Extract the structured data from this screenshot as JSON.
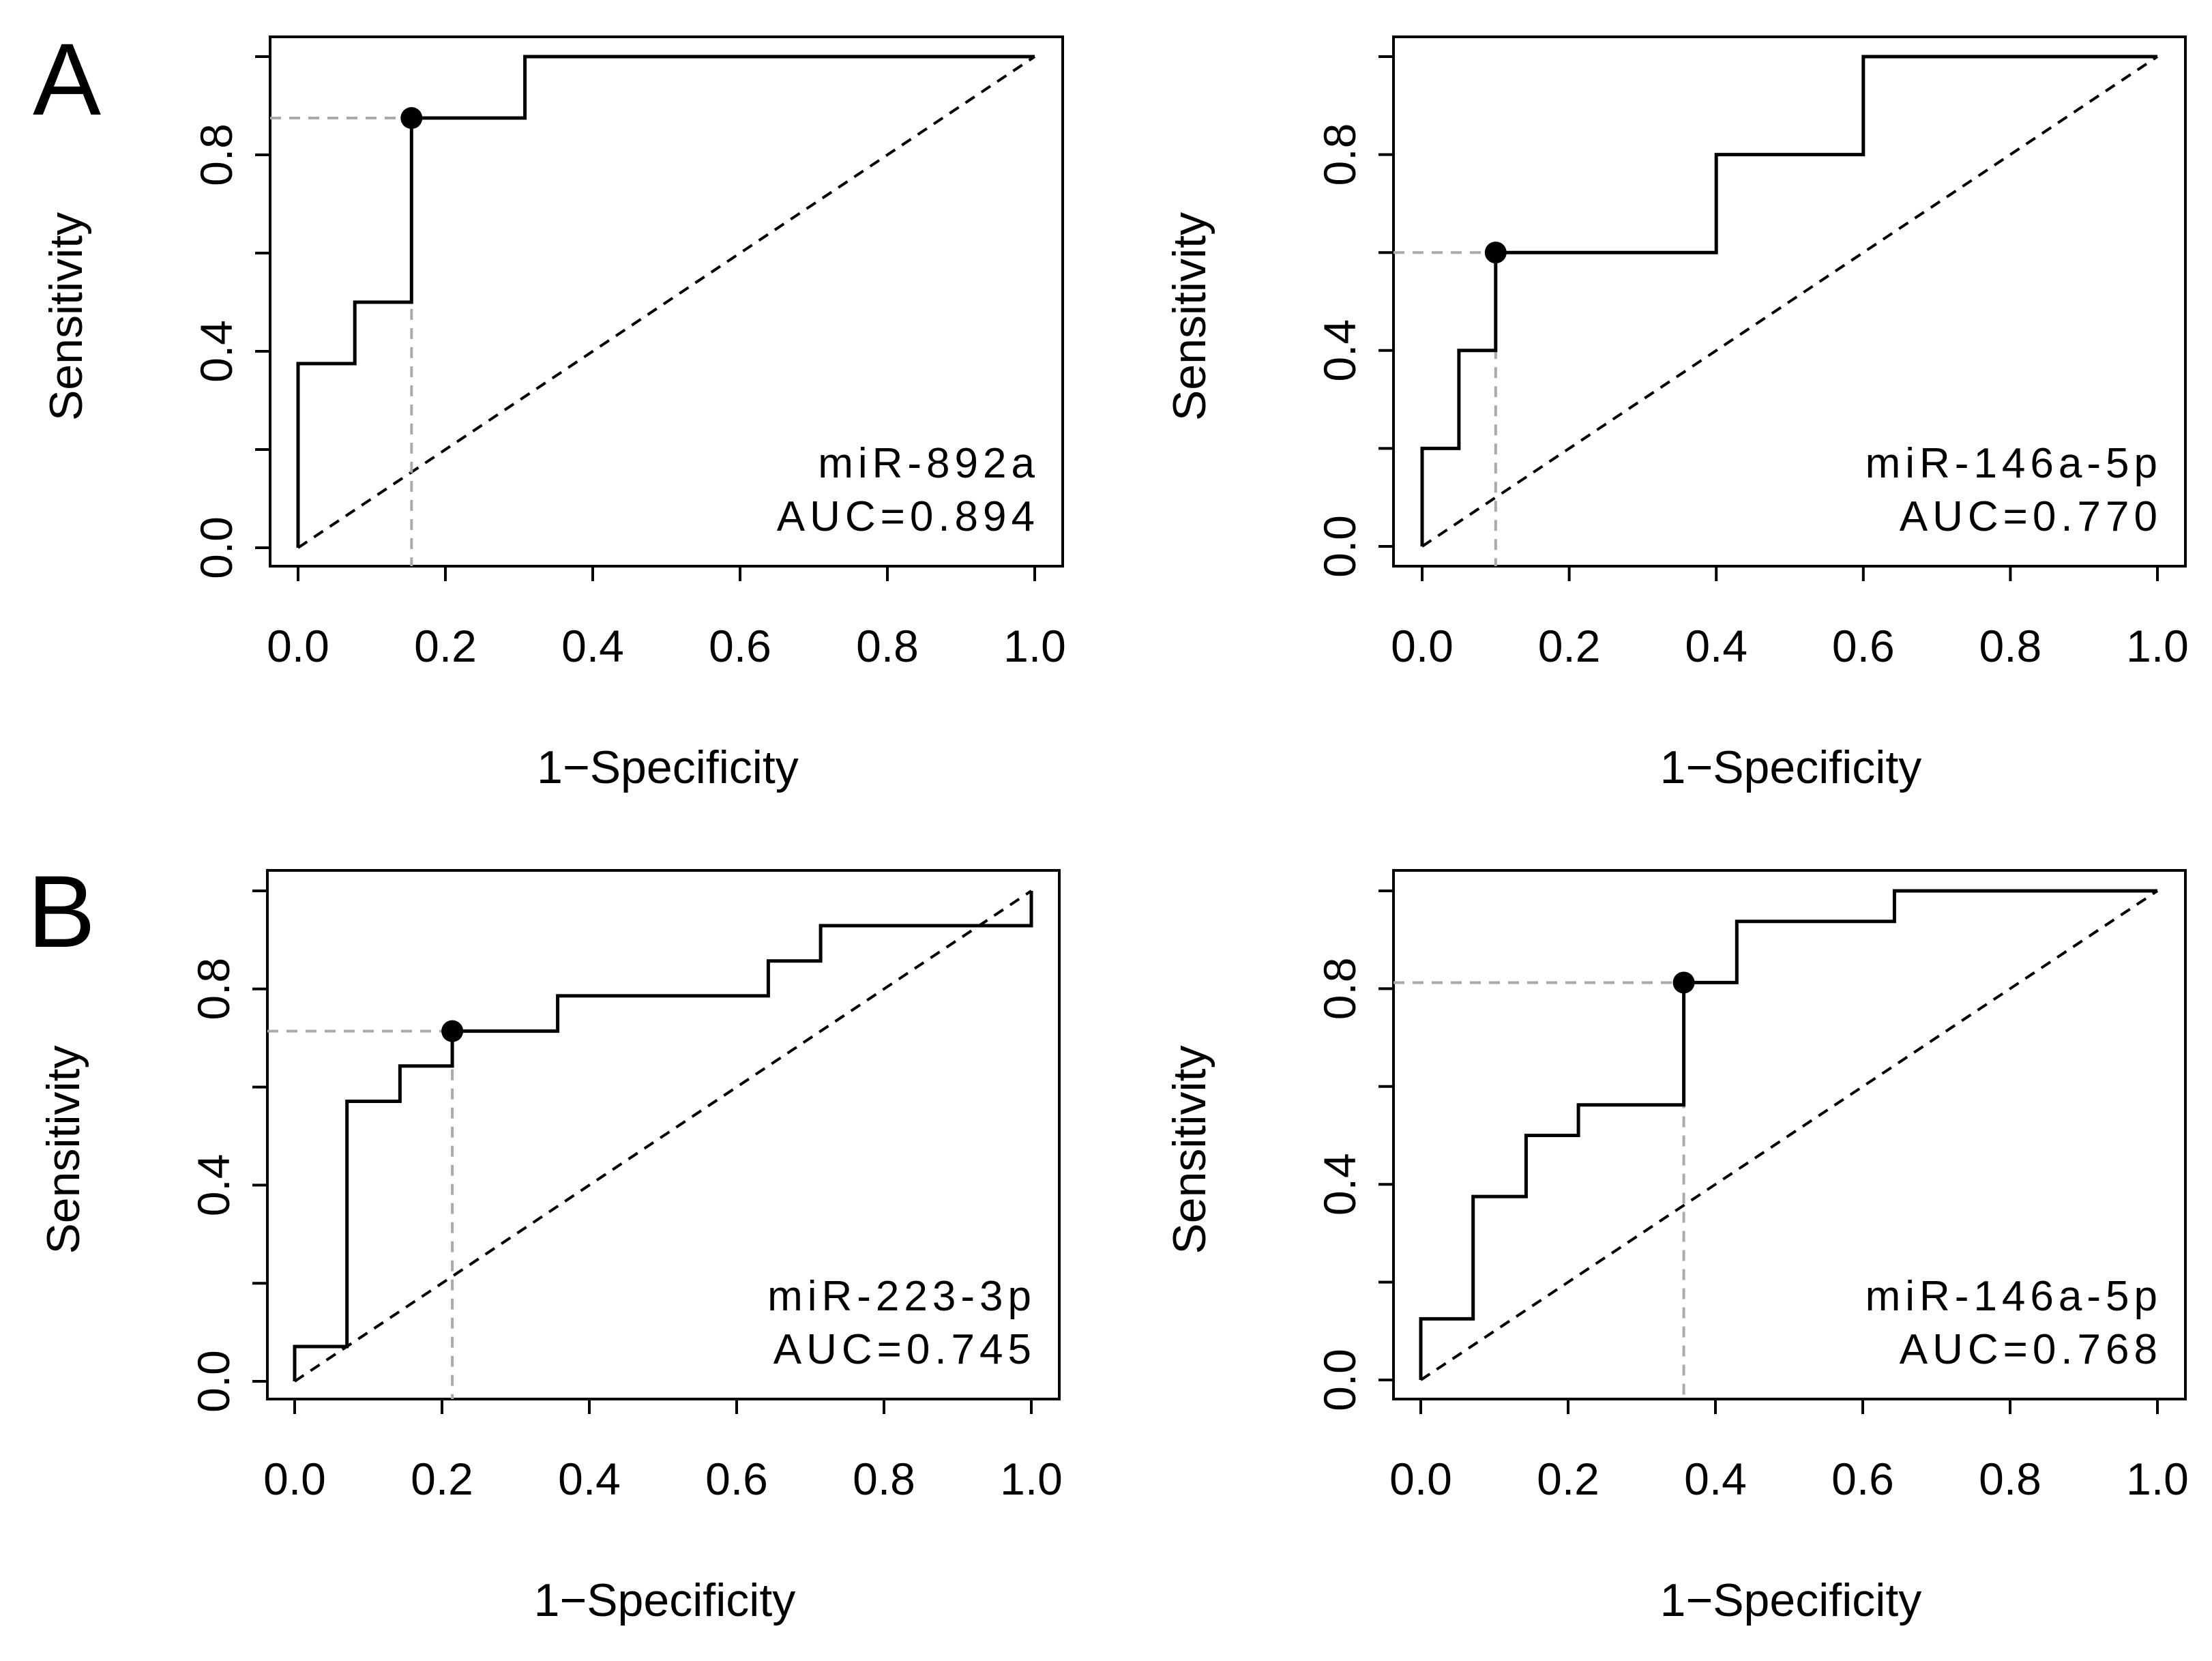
{
  "figure": {
    "panel_labels": [
      "A",
      "B"
    ]
  },
  "colors": {
    "curve": "#000000",
    "diagonal": "#000000",
    "guide": "#aaaaaa",
    "point": "#000000"
  },
  "chart_data": [
    {
      "type": "line",
      "panel": "A",
      "xlabel": "1−Specificity",
      "ylabel": "Sensitivity",
      "xlim": [
        0,
        1
      ],
      "ylim": [
        0,
        1
      ],
      "xticks": [
        "0.0",
        "0.2",
        "0.4",
        "0.6",
        "0.8",
        "1.0"
      ],
      "yticks": [
        "0.0",
        "0.4",
        "0.8"
      ],
      "annotation": [
        "miR-892a",
        "AUC=0.894"
      ],
      "roc": {
        "x": [
          0,
          0,
          0.077,
          0.077,
          0.154,
          0.154,
          0.308,
          0.308,
          1
        ],
        "y": [
          0,
          0.375,
          0.375,
          0.5,
          0.5,
          0.875,
          0.875,
          1,
          1
        ]
      },
      "cutoff": {
        "x": 0.154,
        "y": 0.875
      }
    },
    {
      "type": "line",
      "panel": "A",
      "xlabel": "1−Specificity",
      "ylabel": "Sensitivity",
      "xlim": [
        0,
        1
      ],
      "ylim": [
        0,
        1
      ],
      "xticks": [
        "0.0",
        "0.2",
        "0.4",
        "0.6",
        "0.8",
        "1.0"
      ],
      "yticks": [
        "0.0",
        "0.4",
        "0.8"
      ],
      "annotation": [
        "miR-146a-5p",
        "AUC=0.770"
      ],
      "roc": {
        "x": [
          0,
          0,
          0.05,
          0.05,
          0.1,
          0.1,
          0.4,
          0.4,
          0.6,
          0.6,
          1
        ],
        "y": [
          0,
          0.2,
          0.2,
          0.4,
          0.4,
          0.6,
          0.6,
          0.8,
          0.8,
          1,
          1
        ]
      },
      "cutoff": {
        "x": 0.1,
        "y": 0.6
      }
    },
    {
      "type": "line",
      "panel": "B",
      "xlabel": "1−Specificity",
      "ylabel": "Sensitivity",
      "xlim": [
        0,
        1
      ],
      "ylim": [
        0,
        1
      ],
      "xticks": [
        "0.0",
        "0.2",
        "0.4",
        "0.6",
        "0.8",
        "1.0"
      ],
      "yticks": [
        "0.0",
        "0.4",
        "0.8"
      ],
      "annotation": [
        "miR-223-3p",
        "AUC=0.745"
      ],
      "roc": {
        "x": [
          0,
          0,
          0.071,
          0.071,
          0.143,
          0.143,
          0.214,
          0.214,
          0.357,
          0.357,
          0.643,
          0.643,
          0.714,
          0.714,
          1,
          1
        ],
        "y": [
          0,
          0.071,
          0.071,
          0.571,
          0.571,
          0.643,
          0.643,
          0.714,
          0.714,
          0.786,
          0.786,
          0.857,
          0.857,
          0.929,
          0.929,
          1
        ]
      },
      "cutoff": {
        "x": 0.214,
        "y": 0.714
      }
    },
    {
      "type": "line",
      "panel": "B",
      "xlabel": "1−Specificity",
      "ylabel": "Sensitivity",
      "xlim": [
        0,
        1
      ],
      "ylim": [
        0,
        1
      ],
      "xticks": [
        "0.0",
        "0.2",
        "0.4",
        "0.6",
        "0.8",
        "1.0"
      ],
      "yticks": [
        "0.0",
        "0.4",
        "0.8"
      ],
      "annotation": [
        "miR-146a-5p",
        "AUC=0.768"
      ],
      "roc": {
        "x": [
          0,
          0,
          0.071,
          0.071,
          0.143,
          0.143,
          0.214,
          0.214,
          0.357,
          0.357,
          0.429,
          0.429,
          0.643,
          0.643,
          1
        ],
        "y": [
          0,
          0.125,
          0.125,
          0.375,
          0.375,
          0.5,
          0.5,
          0.5625,
          0.5625,
          0.8125,
          0.8125,
          0.9375,
          0.9375,
          1,
          1
        ]
      },
      "cutoff": {
        "x": 0.357,
        "y": 0.8125
      }
    }
  ]
}
